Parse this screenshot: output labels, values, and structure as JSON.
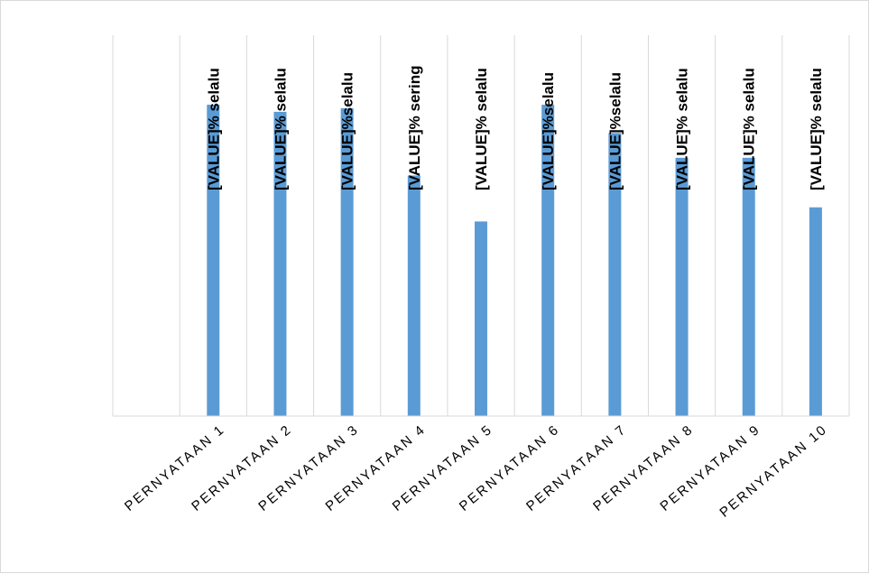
{
  "chart_data": {
    "type": "bar",
    "title": "",
    "xlabel": "",
    "ylabel": "",
    "categories": [
      "PERNYATAAN 1",
      "PERNYATAAN 2",
      "PERNYATAAN 3",
      "PERNYATAAN 4",
      "PERNYATAAN 5",
      "PERNYATAAN 6",
      "PERNYATAAN 7",
      "PERNYATAAN 8",
      "PERNYATAAN 9",
      "PERNYATAAN 10"
    ],
    "series": [
      {
        "values": [
          88,
          86,
          87,
          68,
          55,
          88,
          80,
          73,
          73,
          59
        ],
        "color": "#5b9bd5"
      }
    ],
    "data_labels": [
      "[VALUE]% selalu",
      "[VALUE]% selalu",
      "[VALUE]%selalu",
      "[VALUE]% sering",
      "[VALUE]% selalu",
      "[VALUE]%selalu",
      "[VALUE]%selalu",
      "[VALUE]% selalu",
      "[VALUE]% selalu",
      "[VALUE]% selalu"
    ],
    "ylim": [
      0,
      100
    ],
    "grid": "vertical",
    "legend": "none",
    "y_axis_visible": false
  }
}
